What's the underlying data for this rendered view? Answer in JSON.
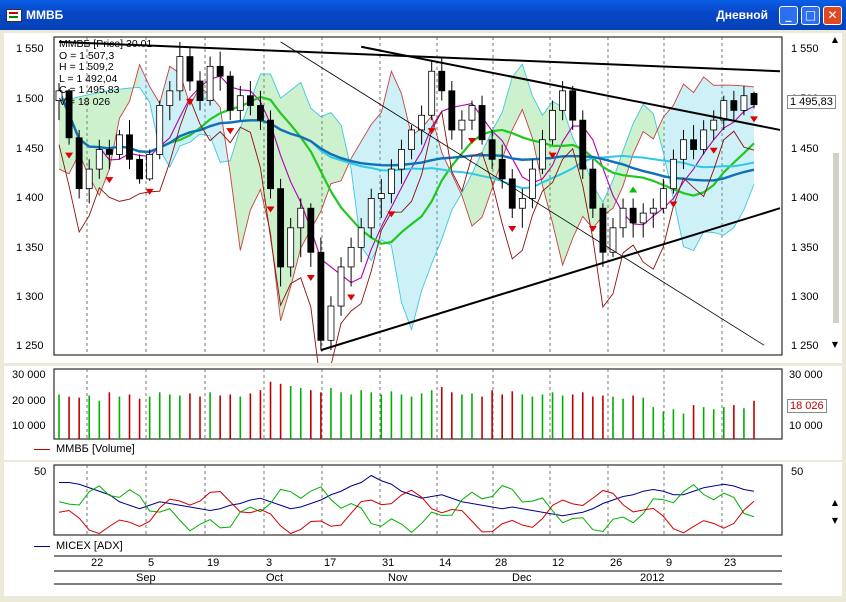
{
  "window": {
    "title": "ММВБ",
    "period": "Дневной",
    "buttons": [
      "minimize",
      "maximize",
      "close"
    ]
  },
  "price_panel": {
    "legend": {
      "title": "ММВБ [Price] 30.01",
      "open": "O = 1 507,3",
      "high": "H = 1 509,2",
      "low": "L = 1 492,04",
      "close": "C = 1 495,83",
      "volume": "V = 18 026"
    },
    "last_value": "1 495,83",
    "y_ticks": [
      "1 550",
      "1 500",
      "1 450",
      "1 400",
      "1 350",
      "1 300",
      "1 250"
    ],
    "colors": {
      "up": "#00b000",
      "down": "#c00000",
      "up_arrow": "#00c000",
      "down_arrow": "#e00000"
    }
  },
  "volume_panel": {
    "legend": "ММВБ [Volume]",
    "y_ticks": [
      "30 000",
      "20 000",
      "10 000"
    ],
    "last_value": "18 026"
  },
  "adx_panel": {
    "legend": "MICEX [ADX]",
    "y_ticks": [
      "50"
    ]
  },
  "time_axis": {
    "days": [
      "22",
      "5",
      "19",
      "3",
      "17",
      "31",
      "14",
      "28",
      "12",
      "26",
      "9",
      "23"
    ],
    "months": [
      "Sep",
      "Oct",
      "Nov",
      "Dec",
      "2012"
    ]
  },
  "chart_data": {
    "type": "candlestick",
    "instrument": "ММВБ",
    "ylim": [
      1240,
      1565
    ],
    "candles": [
      [
        1500,
        1518,
        1480,
        1510
      ],
      [
        1510,
        1512,
        1455,
        1462
      ],
      [
        1462,
        1470,
        1400,
        1410
      ],
      [
        1410,
        1440,
        1395,
        1430
      ],
      [
        1430,
        1460,
        1420,
        1450
      ],
      [
        1450,
        1460,
        1430,
        1445
      ],
      [
        1445,
        1470,
        1440,
        1465
      ],
      [
        1465,
        1480,
        1430,
        1440
      ],
      [
        1440,
        1445,
        1415,
        1420
      ],
      [
        1420,
        1450,
        1418,
        1445
      ],
      [
        1445,
        1500,
        1440,
        1495
      ],
      [
        1495,
        1520,
        1480,
        1510
      ],
      [
        1510,
        1560,
        1500,
        1545
      ],
      [
        1545,
        1555,
        1510,
        1520
      ],
      [
        1520,
        1530,
        1490,
        1500
      ],
      [
        1500,
        1545,
        1495,
        1535
      ],
      [
        1535,
        1550,
        1510,
        1525
      ],
      [
        1525,
        1530,
        1480,
        1490
      ],
      [
        1490,
        1515,
        1480,
        1505
      ],
      [
        1505,
        1520,
        1485,
        1495
      ],
      [
        1495,
        1510,
        1470,
        1480
      ],
      [
        1480,
        1490,
        1400,
        1410
      ],
      [
        1410,
        1420,
        1310,
        1330
      ],
      [
        1330,
        1380,
        1320,
        1370
      ],
      [
        1370,
        1400,
        1340,
        1390
      ],
      [
        1390,
        1395,
        1330,
        1345
      ],
      [
        1345,
        1360,
        1245,
        1255
      ],
      [
        1255,
        1300,
        1245,
        1290
      ],
      [
        1290,
        1340,
        1280,
        1330
      ],
      [
        1330,
        1360,
        1310,
        1350
      ],
      [
        1350,
        1380,
        1335,
        1370
      ],
      [
        1370,
        1410,
        1360,
        1400
      ],
      [
        1400,
        1420,
        1380,
        1405
      ],
      [
        1405,
        1440,
        1395,
        1430
      ],
      [
        1430,
        1460,
        1415,
        1450
      ],
      [
        1450,
        1475,
        1440,
        1470
      ],
      [
        1470,
        1495,
        1455,
        1485
      ],
      [
        1485,
        1540,
        1480,
        1530
      ],
      [
        1530,
        1545,
        1500,
        1510
      ],
      [
        1510,
        1520,
        1460,
        1470
      ],
      [
        1470,
        1490,
        1450,
        1480
      ],
      [
        1480,
        1500,
        1470,
        1495
      ],
      [
        1495,
        1505,
        1455,
        1460
      ],
      [
        1460,
        1470,
        1430,
        1440
      ],
      [
        1440,
        1455,
        1410,
        1420
      ],
      [
        1420,
        1430,
        1380,
        1390
      ],
      [
        1390,
        1410,
        1370,
        1400
      ],
      [
        1400,
        1440,
        1390,
        1430
      ],
      [
        1430,
        1470,
        1425,
        1460
      ],
      [
        1460,
        1500,
        1455,
        1490
      ],
      [
        1490,
        1520,
        1480,
        1510
      ],
      [
        1510,
        1515,
        1470,
        1480
      ],
      [
        1480,
        1490,
        1420,
        1430
      ],
      [
        1430,
        1440,
        1380,
        1390
      ],
      [
        1390,
        1395,
        1330,
        1345
      ],
      [
        1345,
        1380,
        1340,
        1370
      ],
      [
        1370,
        1400,
        1360,
        1390
      ],
      [
        1390,
        1400,
        1360,
        1375
      ],
      [
        1375,
        1395,
        1360,
        1385
      ],
      [
        1385,
        1400,
        1370,
        1390
      ],
      [
        1390,
        1420,
        1385,
        1410
      ],
      [
        1410,
        1450,
        1405,
        1440
      ],
      [
        1440,
        1470,
        1430,
        1460
      ],
      [
        1460,
        1475,
        1440,
        1450
      ],
      [
        1450,
        1480,
        1445,
        1470
      ],
      [
        1470,
        1490,
        1460,
        1480
      ],
      [
        1480,
        1505,
        1470,
        1500
      ],
      [
        1500,
        1510,
        1480,
        1490
      ],
      [
        1490,
        1515,
        1485,
        1505
      ],
      [
        1507.3,
        1509.2,
        1492.04,
        1495.83
      ]
    ],
    "trendlines": [
      {
        "from": [
          0,
          1560
        ],
        "to": [
          80,
          1530
        ]
      },
      {
        "from": [
          30,
          1555
        ],
        "to": [
          80,
          1470
        ]
      },
      {
        "from": [
          26,
          1245
        ],
        "to": [
          80,
          1390
        ]
      },
      {
        "from": [
          22,
          1560
        ],
        "to": [
          70,
          1250
        ]
      }
    ],
    "volume": [
      21000,
      20000,
      19500,
      20500,
      18000,
      22000,
      20000,
      21000,
      19000,
      20000,
      22000,
      21000,
      20500,
      21500,
      20000,
      22000,
      20500,
      21000,
      20000,
      21500,
      23000,
      27000,
      26000,
      25000,
      24000,
      23000,
      22000,
      24000,
      22000,
      21000,
      23000,
      22000,
      21000,
      22500,
      21000,
      20000,
      21500,
      23000,
      24500,
      22000,
      21000,
      21500,
      20000,
      23000,
      21000,
      22500,
      21000,
      20000,
      21000,
      22000,
      20500,
      21000,
      22000,
      20000,
      20500,
      20000,
      19000,
      20500,
      19500,
      15000,
      13000,
      14000,
      12000,
      16000,
      15000,
      14000,
      15000,
      16000,
      14500,
      18026
    ],
    "adx": [
      45,
      45,
      44,
      42,
      40,
      38,
      34,
      32,
      30,
      32,
      34,
      33,
      32,
      31,
      30,
      29,
      30,
      32,
      33,
      35,
      36,
      34,
      32,
      30,
      31,
      33,
      35,
      38,
      40,
      43,
      45,
      49,
      46,
      44,
      40,
      38,
      36,
      37,
      38,
      36,
      34,
      33,
      32,
      31,
      30,
      31,
      30,
      29,
      28,
      27,
      26,
      27,
      28,
      30,
      33,
      35,
      37,
      38,
      40,
      41,
      40,
      38,
      38,
      40,
      42,
      43,
      44,
      43,
      41,
      40
    ]
  }
}
